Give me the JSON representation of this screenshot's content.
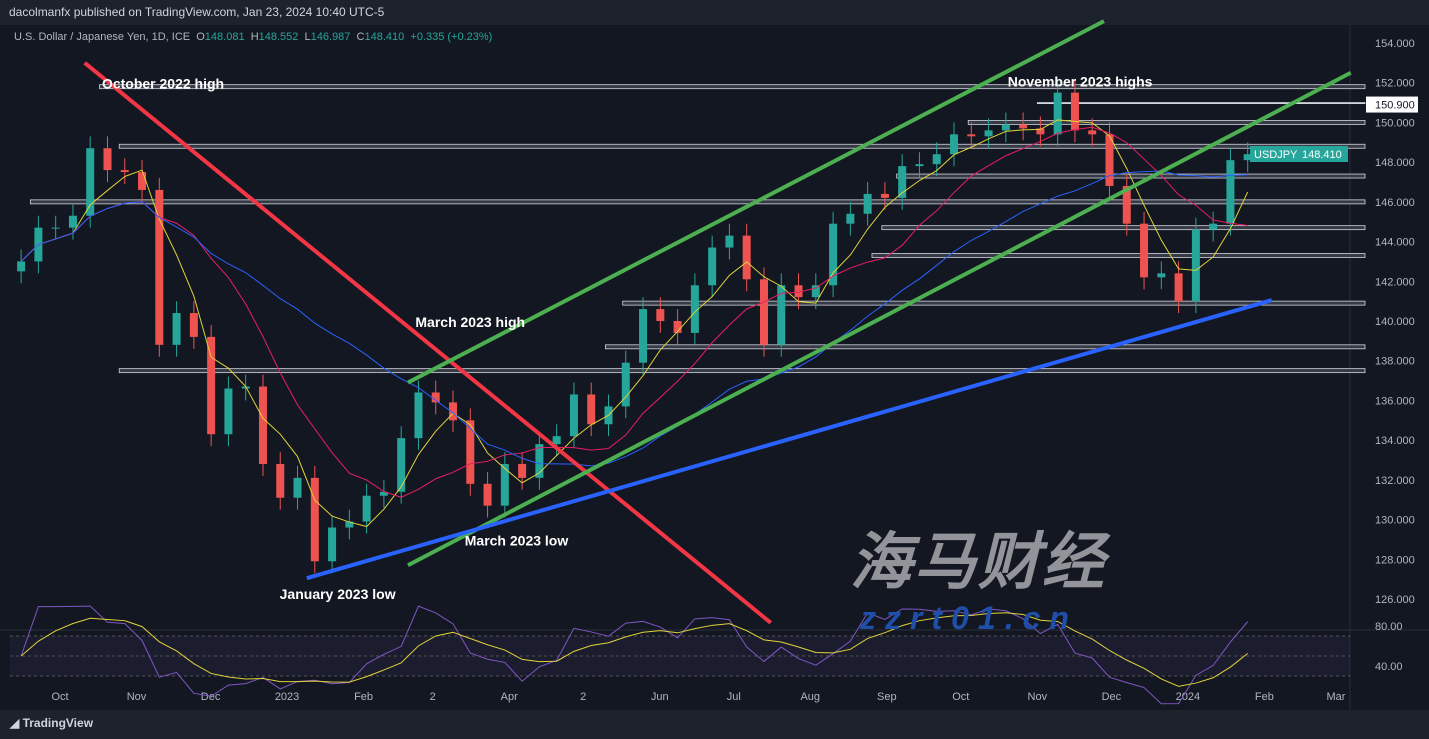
{
  "header": {
    "published": "dacolmanfx published on TradingView.com, Jan 23, 2024 10:40 UTC-5",
    "symbol": "U.S. Dollar / Japanese Yen, 1D, ICE",
    "o_label": "O",
    "o": "148.081",
    "h_label": "H",
    "h": "148.552",
    "l_label": "L",
    "l": "146.987",
    "c_label": "C",
    "c": "148.410",
    "change": "+0.335 (+0.23%)"
  },
  "footer": {
    "brand": "TradingView"
  },
  "watermark": {
    "cn": "海马财经",
    "url": "zzrt01.cn"
  },
  "chart_data": {
    "type": "candlestick",
    "ylim": [
      124,
      155
    ],
    "yticks": [
      "154.000",
      "152.000",
      "150.000",
      "148.000",
      "146.000",
      "144.000",
      "142.000",
      "140.000",
      "138.000",
      "136.000",
      "134.000",
      "132.000",
      "130.000",
      "128.000",
      "126.000"
    ],
    "xticks": [
      {
        "label": "Oct",
        "date": "2022-10-01"
      },
      {
        "label": "Nov",
        "date": "2022-11-01"
      },
      {
        "label": "Dec",
        "date": "2022-12-01"
      },
      {
        "label": "2023",
        "date": "2023-01-01"
      },
      {
        "label": "Feb",
        "date": "2023-02-01"
      },
      {
        "label": "2",
        "date": "2023-03-01"
      },
      {
        "label": "Apr",
        "date": "2023-04-01"
      },
      {
        "label": "2",
        "date": "2023-05-01"
      },
      {
        "label": "Jun",
        "date": "2023-06-01"
      },
      {
        "label": "Jul",
        "date": "2023-07-01"
      },
      {
        "label": "Aug",
        "date": "2023-08-01"
      },
      {
        "label": "Sep",
        "date": "2023-09-01"
      },
      {
        "label": "Oct",
        "date": "2023-10-01"
      },
      {
        "label": "Nov",
        "date": "2023-11-01"
      },
      {
        "label": "Dec",
        "date": "2023-12-01"
      },
      {
        "label": "2024",
        "date": "2024-01-01"
      },
      {
        "label": "Feb",
        "date": "2024-02-01"
      },
      {
        "label": "Mar",
        "date": "2024-03-01"
      }
    ],
    "start_week": "2022-09-12",
    "weekly_closes": [
      143.0,
      144.7,
      144.7,
      145.3,
      148.7,
      147.6,
      147.5,
      146.6,
      138.8,
      140.4,
      139.2,
      134.3,
      136.6,
      136.7,
      132.8,
      131.1,
      132.1,
      127.9,
      129.6,
      129.9,
      131.2,
      131.4,
      134.1,
      136.4,
      135.9,
      135.0,
      131.8,
      130.7,
      132.8,
      132.1,
      133.8,
      134.2,
      136.3,
      134.8,
      135.7,
      137.9,
      140.6,
      140.0,
      139.4,
      141.8,
      143.7,
      144.3,
      142.1,
      138.8,
      141.8,
      141.2,
      141.8,
      144.9,
      145.4,
      146.4,
      146.2,
      147.8,
      147.9,
      148.4,
      149.4,
      149.3,
      149.6,
      149.9,
      149.7,
      149.4,
      151.5,
      149.6,
      149.4,
      146.8,
      144.9,
      142.2,
      142.4,
      141.0,
      144.6,
      144.9,
      148.1,
      148.4
    ],
    "levels": [
      {
        "price": 151.8,
        "from": "2022-10-17"
      },
      {
        "price": 150.9,
        "from": "2023-11-01",
        "label": "150.900"
      },
      {
        "price": 150.0,
        "from": "2023-10-04"
      },
      {
        "price": 148.8,
        "from": "2022-10-25"
      },
      {
        "price": 147.3,
        "from": "2023-09-05"
      },
      {
        "price": 146.0,
        "from": "2022-09-19"
      },
      {
        "price": 144.7,
        "from": "2023-08-30"
      },
      {
        "price": 143.3,
        "from": "2023-08-26"
      },
      {
        "price": 140.9,
        "from": "2023-05-17"
      },
      {
        "price": 138.7,
        "from": "2023-05-10"
      },
      {
        "price": 137.5,
        "from": "2022-10-25"
      }
    ],
    "trendlines": [
      {
        "color": "#f23645",
        "from": [
          "2022-10-11",
          153.0
        ],
        "to": [
          "2023-07-16",
          124.8
        ]
      },
      {
        "color": "#4caf50",
        "from": [
          "2023-02-19",
          136.9
        ],
        "to": [
          "2023-11-28",
          155.1
        ]
      },
      {
        "color": "#4caf50",
        "from": [
          "2023-02-19",
          127.7
        ],
        "to": [
          "2024-03-07",
          152.5
        ]
      },
      {
        "color": "#2962ff",
        "from": [
          "2023-01-09",
          127.05
        ],
        "to": [
          "2024-02-04",
          141.05
        ]
      }
    ],
    "annotations": [
      {
        "text": "October 2022 high",
        "date": "2022-10-18",
        "price": 151.7
      },
      {
        "text": "November 2023 highs",
        "date": "2023-10-20",
        "price": 151.8
      },
      {
        "text": "March 2023 high",
        "date": "2023-02-22",
        "price": 139.7
      },
      {
        "text": "March 2023 low",
        "date": "2023-03-14",
        "price": 128.7
      },
      {
        "text": "January 2023 low",
        "date": "2022-12-29",
        "price": 126.0
      }
    ],
    "last_price": {
      "symbol": "USDJPY",
      "value": "148.410"
    },
    "rsi": {
      "ticks": [
        "80.00",
        "40.00"
      ]
    },
    "colors": {
      "up": "#26a69a",
      "down": "#ef5350",
      "ma_fast": "#e0d33a",
      "ma_mid": "#e91e63",
      "ma_slow": "#2962ff",
      "rsi": "#7e57c2"
    }
  }
}
